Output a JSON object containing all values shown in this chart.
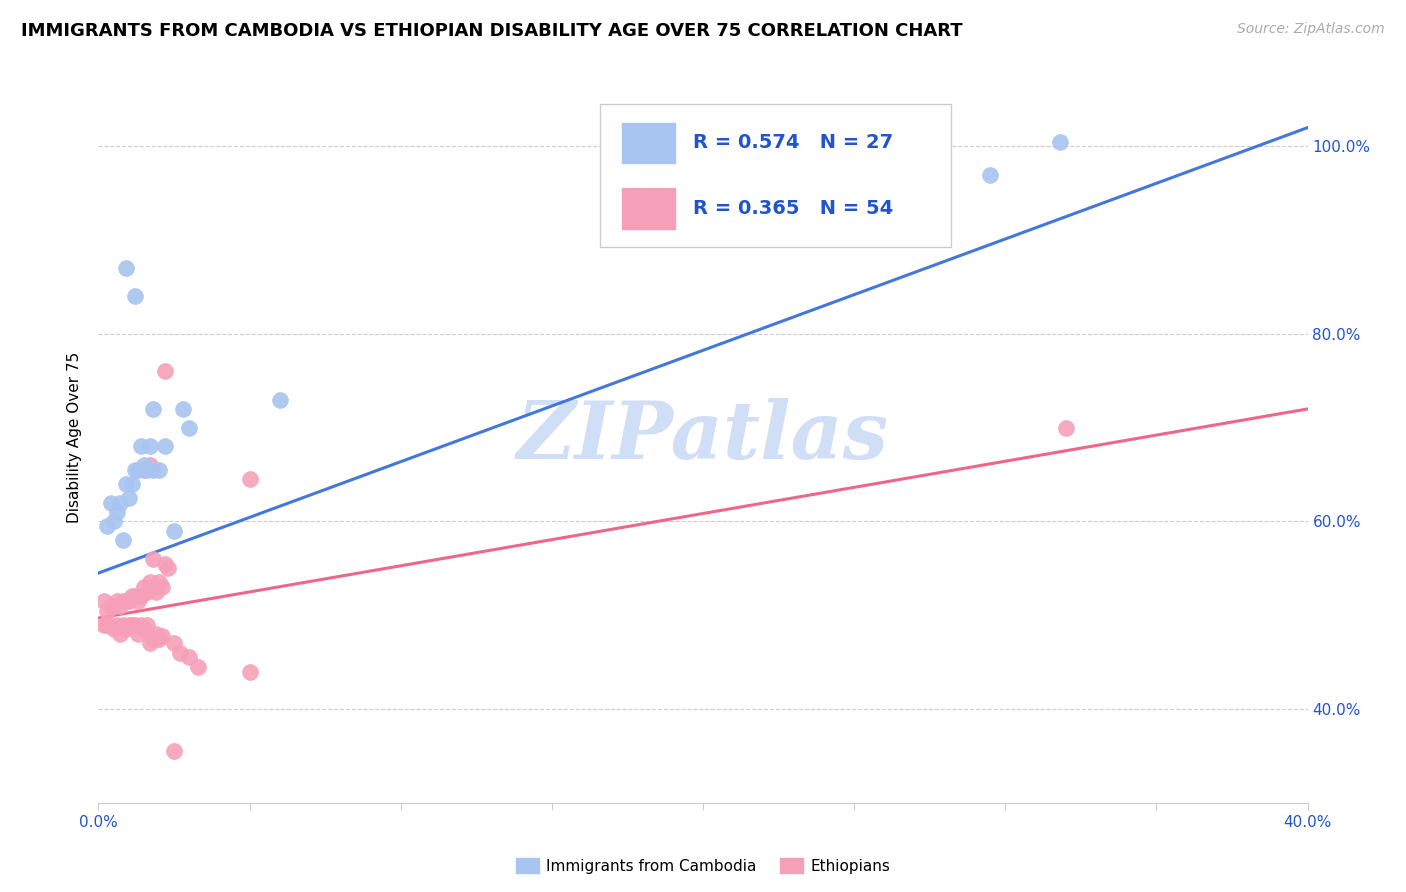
{
  "title": "IMMIGRANTS FROM CAMBODIA VS ETHIOPIAN DISABILITY AGE OVER 75 CORRELATION CHART",
  "source": "Source: ZipAtlas.com",
  "ylabel": "Disability Age Over 75",
  "xlim": [
    0.0,
    0.4
  ],
  "ylim": [
    0.3,
    1.08
  ],
  "y_ticks": [
    0.4,
    0.6,
    0.8,
    1.0
  ],
  "y_tick_labels": [
    "40.0%",
    "60.0%",
    "80.0%",
    "100.0%"
  ],
  "x_ticks": [
    0.0,
    0.05,
    0.1,
    0.15,
    0.2,
    0.25,
    0.3,
    0.35,
    0.4
  ],
  "legend_r1": "0.574",
  "legend_n1": "27",
  "legend_r2": "0.365",
  "legend_n2": "54",
  "color_cambodia_fill": "#a8c4f0",
  "color_cambodia_edge": "#a8c4f0",
  "color_ethiopia_fill": "#f5a0b8",
  "color_ethiopia_edge": "#f5a0b8",
  "color_line_cambodia": "#4477dd",
  "color_line_ethiopia": "#ee6688",
  "color_legend_text": "#2255cc",
  "watermark": "ZIPatlas",
  "watermark_color": "#d0dff5",
  "grid_color": "#cccccc",
  "title_fontsize": 13,
  "source_fontsize": 10,
  "tick_fontsize": 11,
  "legend_fontsize": 14,
  "ylabel_fontsize": 11,
  "cambodia_pts": [
    [
      0.003,
      0.595
    ],
    [
      0.004,
      0.62
    ],
    [
      0.005,
      0.6
    ],
    [
      0.006,
      0.61
    ],
    [
      0.007,
      0.62
    ],
    [
      0.008,
      0.58
    ],
    [
      0.009,
      0.64
    ],
    [
      0.01,
      0.625
    ],
    [
      0.011,
      0.64
    ],
    [
      0.012,
      0.655
    ],
    [
      0.013,
      0.655
    ],
    [
      0.014,
      0.68
    ],
    [
      0.015,
      0.66
    ],
    [
      0.016,
      0.655
    ],
    [
      0.017,
      0.68
    ],
    [
      0.018,
      0.655
    ],
    [
      0.02,
      0.655
    ],
    [
      0.022,
      0.68
    ],
    [
      0.009,
      0.87
    ],
    [
      0.012,
      0.84
    ],
    [
      0.028,
      0.72
    ],
    [
      0.03,
      0.7
    ],
    [
      0.06,
      0.73
    ],
    [
      0.018,
      0.72
    ],
    [
      0.025,
      0.59
    ],
    [
      0.295,
      0.97
    ],
    [
      0.318,
      1.005
    ]
  ],
  "ethiopia_pts": [
    [
      0.002,
      0.515
    ],
    [
      0.003,
      0.505
    ],
    [
      0.004,
      0.51
    ],
    [
      0.005,
      0.51
    ],
    [
      0.006,
      0.515
    ],
    [
      0.007,
      0.51
    ],
    [
      0.008,
      0.515
    ],
    [
      0.009,
      0.515
    ],
    [
      0.01,
      0.515
    ],
    [
      0.011,
      0.52
    ],
    [
      0.012,
      0.52
    ],
    [
      0.013,
      0.515
    ],
    [
      0.014,
      0.52
    ],
    [
      0.015,
      0.53
    ],
    [
      0.016,
      0.525
    ],
    [
      0.017,
      0.535
    ],
    [
      0.018,
      0.53
    ],
    [
      0.019,
      0.525
    ],
    [
      0.02,
      0.535
    ],
    [
      0.021,
      0.53
    ],
    [
      0.002,
      0.49
    ],
    [
      0.003,
      0.49
    ],
    [
      0.004,
      0.49
    ],
    [
      0.005,
      0.485
    ],
    [
      0.006,
      0.49
    ],
    [
      0.007,
      0.48
    ],
    [
      0.008,
      0.49
    ],
    [
      0.009,
      0.485
    ],
    [
      0.01,
      0.49
    ],
    [
      0.011,
      0.49
    ],
    [
      0.012,
      0.49
    ],
    [
      0.013,
      0.48
    ],
    [
      0.014,
      0.49
    ],
    [
      0.015,
      0.485
    ],
    [
      0.016,
      0.49
    ],
    [
      0.017,
      0.47
    ],
    [
      0.018,
      0.475
    ],
    [
      0.019,
      0.48
    ],
    [
      0.02,
      0.475
    ],
    [
      0.021,
      0.478
    ],
    [
      0.022,
      0.555
    ],
    [
      0.023,
      0.55
    ],
    [
      0.015,
      0.655
    ],
    [
      0.017,
      0.66
    ],
    [
      0.025,
      0.47
    ],
    [
      0.027,
      0.46
    ],
    [
      0.03,
      0.455
    ],
    [
      0.033,
      0.445
    ],
    [
      0.018,
      0.56
    ],
    [
      0.05,
      0.44
    ],
    [
      0.05,
      0.645
    ],
    [
      0.025,
      0.355
    ],
    [
      0.32,
      0.7
    ],
    [
      0.022,
      0.76
    ]
  ],
  "cambodia_trendline": [
    0.0,
    0.4,
    0.545,
    1.02
  ],
  "ethiopia_trendline": [
    0.0,
    0.4,
    0.497,
    0.72
  ]
}
